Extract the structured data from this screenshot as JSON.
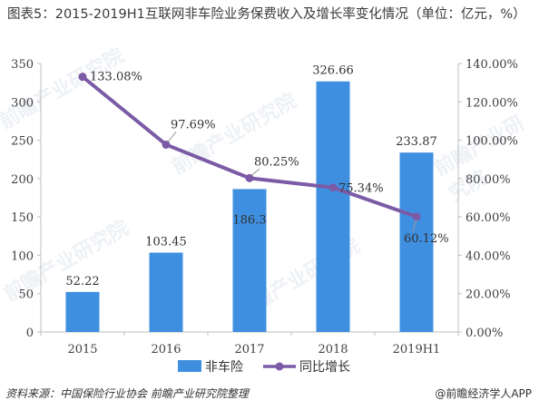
{
  "title": "图表5：2015-2019H1互联网非车险业务保费收入及增长率变化情况（单位：亿元，%）",
  "footer": {
    "source": "资料来源：中国保险行业协会 前瞻产业研究院整理",
    "brand": "@前瞻经济学人APP"
  },
  "watermark": "前瞻产业研究院",
  "colors": {
    "bar": "#3F8FE0",
    "line": "#7B5AA6",
    "axis": "#bfbfbf",
    "text": "#404040"
  },
  "chart_data": {
    "type": "bar+line",
    "categories": [
      "2015",
      "2016",
      "2017",
      "2018",
      "2019H1"
    ],
    "series": [
      {
        "name": "非车险",
        "type": "bar",
        "axis": "left",
        "values": [
          52.22,
          103.45,
          186.3,
          326.66,
          233.87
        ],
        "labels": [
          "52.22",
          "103.45",
          "186.3",
          "326.66",
          "233.87"
        ]
      },
      {
        "name": "同比增长",
        "type": "line",
        "axis": "right",
        "values": [
          133.08,
          97.69,
          80.25,
          75.34,
          60.12
        ],
        "labels": [
          "133.08%",
          "97.69%",
          "80.25%",
          "75.34%",
          "60.12%"
        ]
      }
    ],
    "y_left": {
      "ylim": [
        0,
        350
      ],
      "ticks": [
        "0",
        "50",
        "100",
        "150",
        "200",
        "250",
        "300",
        "350"
      ]
    },
    "y_right": {
      "ylim": [
        0,
        140
      ],
      "ticks": [
        "0.00%",
        "20.00%",
        "40.00%",
        "60.00%",
        "80.00%",
        "100.00%",
        "120.00%",
        "140.00%"
      ]
    },
    "legend": {
      "position": "bottom",
      "items": [
        "非车险",
        "同比增长"
      ]
    },
    "grid": false
  }
}
